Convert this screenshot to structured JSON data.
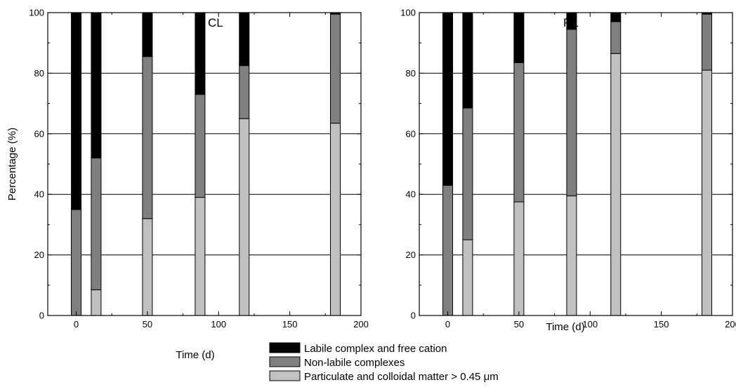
{
  "colors": {
    "labile": "#000000",
    "nonlabile": "#7f7f7f",
    "particulate": "#c0c0c0",
    "edge": "#000000",
    "grid": "#000000"
  },
  "legend": {
    "placement": "bottom-center",
    "items": [
      "Labile complex and free cation",
      "Non-labile complexes",
      "Particulate and colloidal matter > 0.45 μm"
    ]
  },
  "chart_data": [
    {
      "type": "bar",
      "stacked": true,
      "panel_label": "CL",
      "xlabel": "Time (d)",
      "ylabel": "Percentage (%)",
      "xlim": [
        -20,
        200
      ],
      "ylim": [
        0,
        100
      ],
      "x_ticks": [
        0,
        50,
        100,
        150,
        200
      ],
      "y_ticks": [
        0,
        20,
        40,
        60,
        80,
        100
      ],
      "grid": "horizontal",
      "x": [
        0,
        14,
        50,
        87,
        118,
        182
      ],
      "series": [
        {
          "name": "Particulate and colloidal matter > 0.45 μm",
          "values": [
            0,
            8.5,
            32,
            39,
            65,
            63.5
          ]
        },
        {
          "name": "Non-labile complexes",
          "values": [
            35,
            43.5,
            53.5,
            34,
            17.5,
            36
          ]
        },
        {
          "name": "Labile complex and free cation",
          "values": [
            65,
            48,
            14.5,
            27,
            17.5,
            0.5
          ]
        }
      ]
    },
    {
      "type": "bar",
      "stacked": true,
      "panel_label": "RL",
      "xlabel": "Time (d)",
      "ylabel": "",
      "xlim": [
        -20,
        200
      ],
      "ylim": [
        0,
        100
      ],
      "x_ticks": [
        0,
        50,
        100,
        150,
        200
      ],
      "y_ticks": [
        0,
        20,
        40,
        60,
        80,
        100
      ],
      "grid": "horizontal",
      "x": [
        0,
        14,
        50,
        87,
        118,
        182
      ],
      "series": [
        {
          "name": "Particulate and colloidal matter > 0.45 μm",
          "values": [
            0,
            25,
            37.5,
            39.5,
            86.5,
            81
          ]
        },
        {
          "name": "Non-labile complexes",
          "values": [
            43,
            43.5,
            46,
            55,
            10.5,
            18.5
          ]
        },
        {
          "name": "Labile complex and free cation",
          "values": [
            57,
            31.5,
            16.5,
            5.5,
            3,
            0.5
          ]
        }
      ]
    }
  ]
}
